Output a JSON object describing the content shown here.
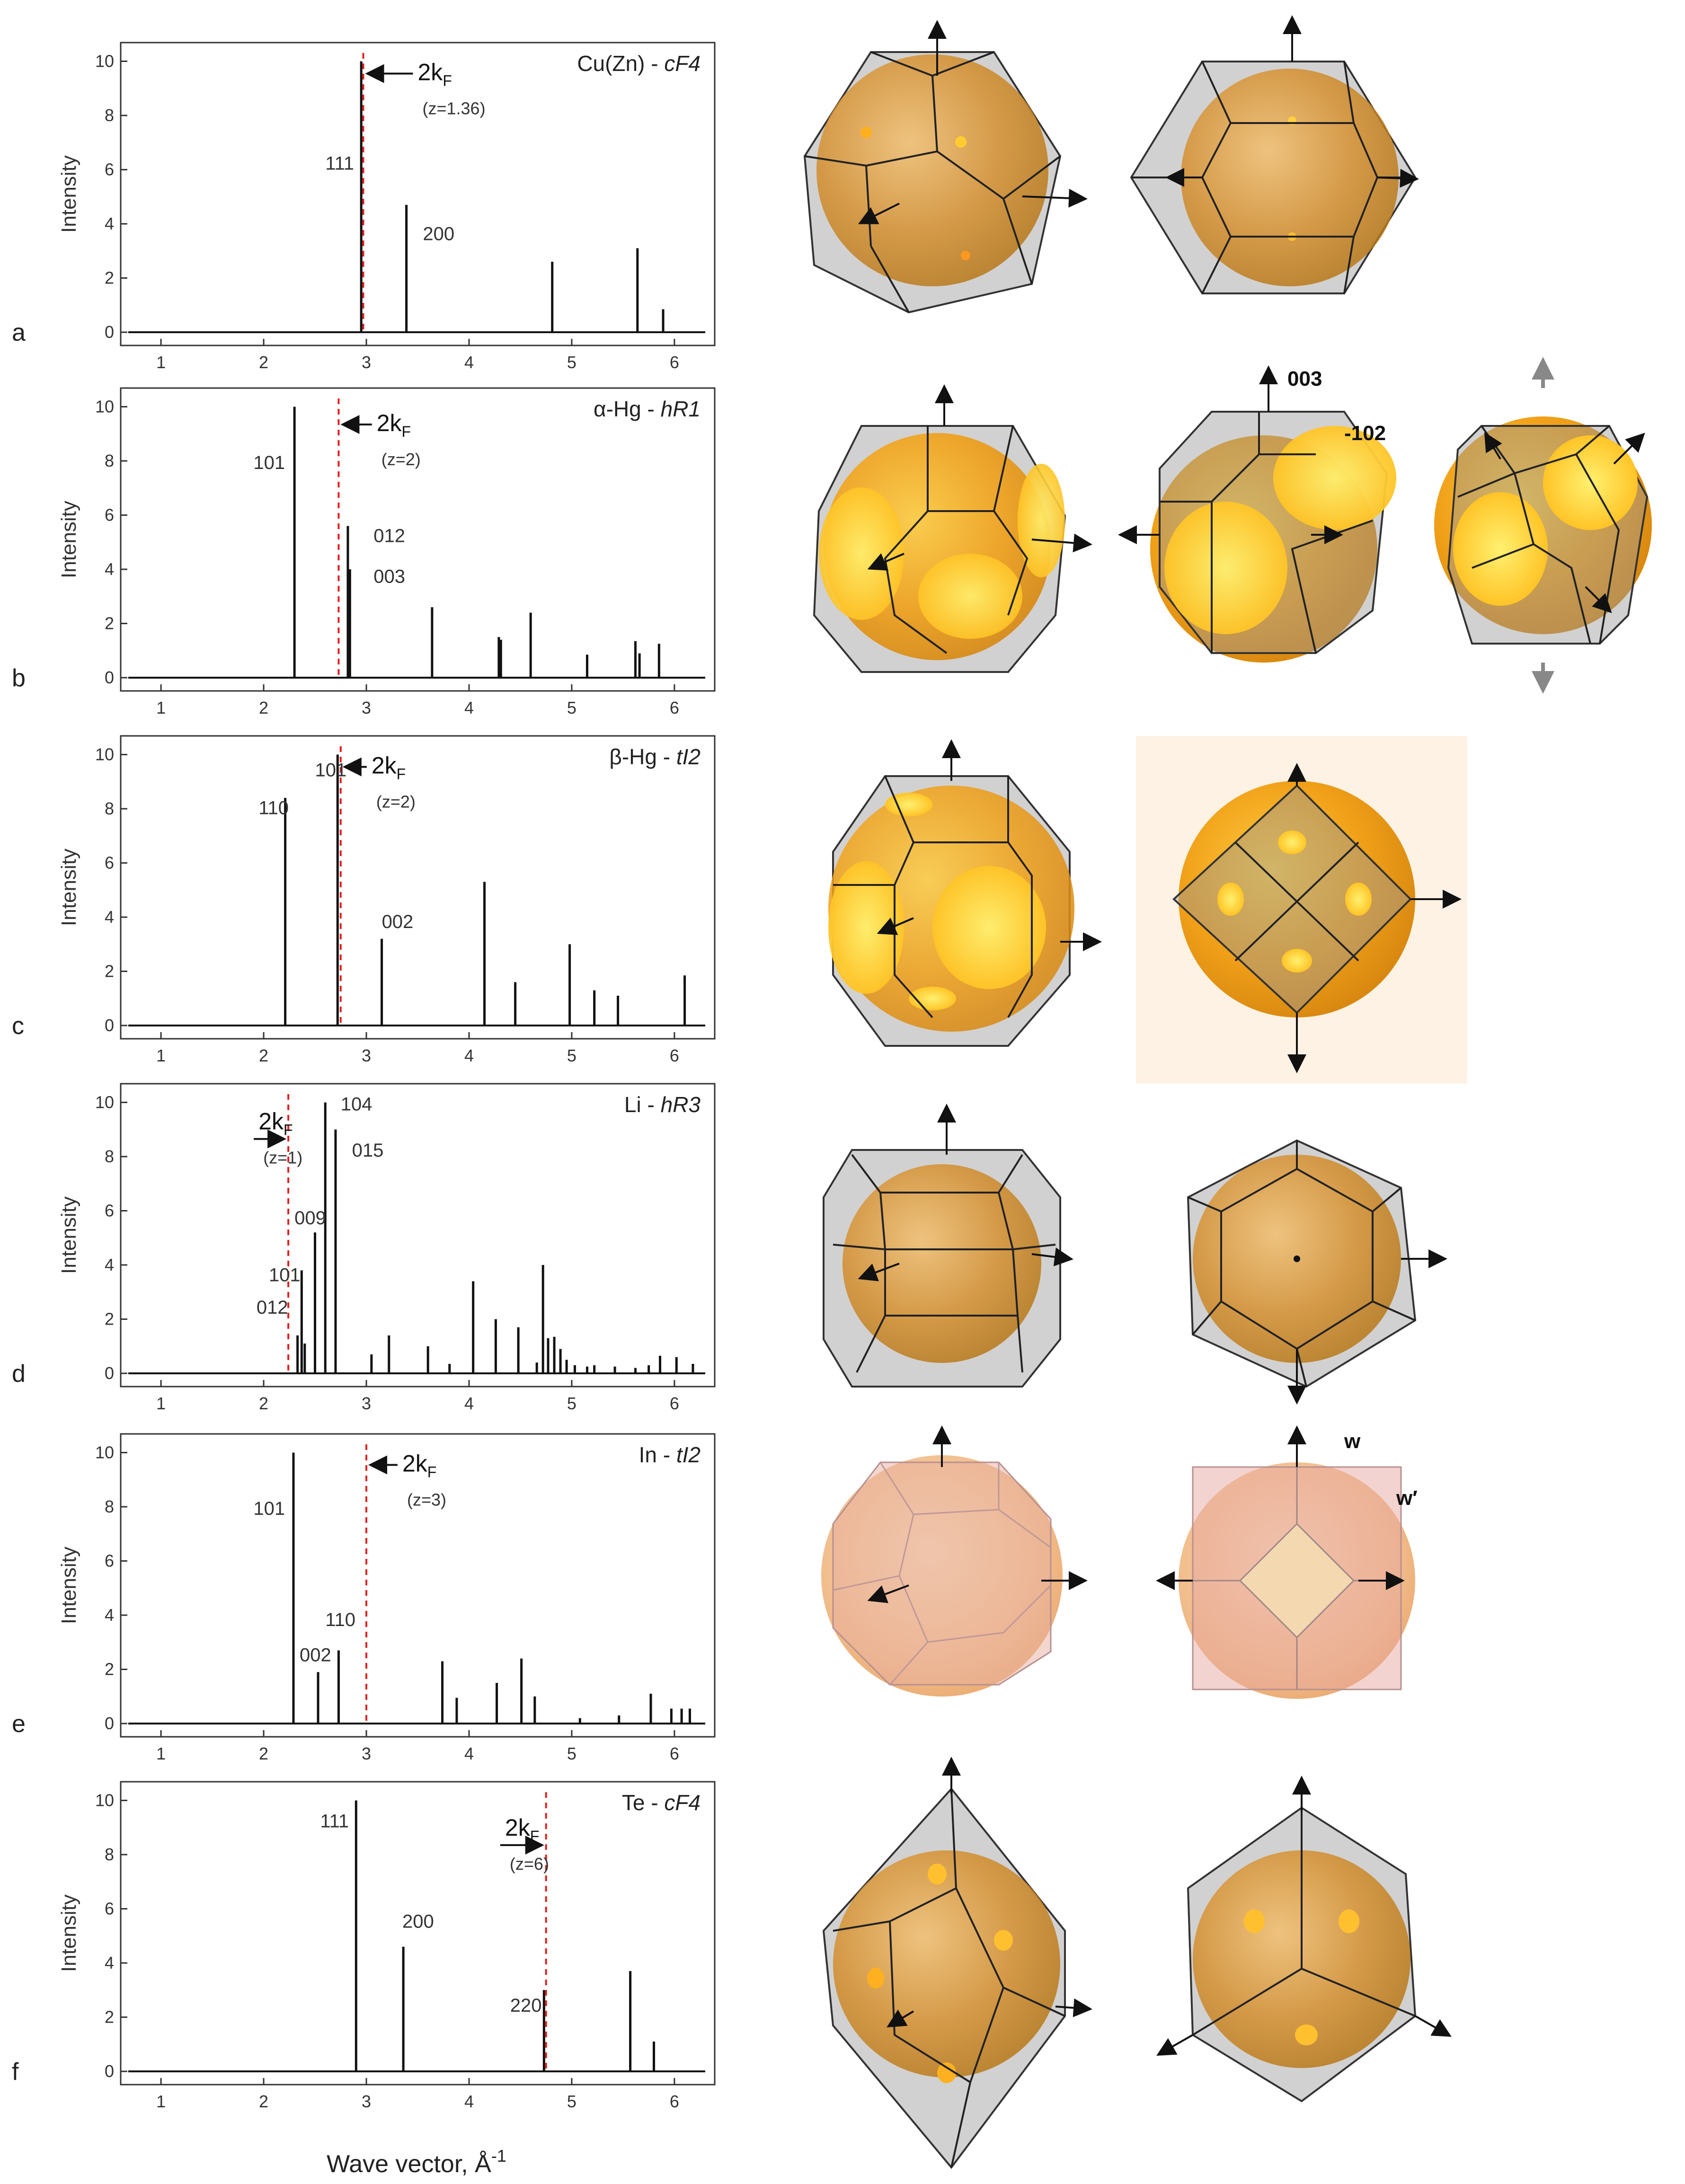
{
  "x_axis_label": "Wave vector, Å",
  "x_axis_exponent": "-1",
  "colors": {
    "kf_line": "#e02020",
    "peak": "#111111",
    "sphere_orange": "#e8a020",
    "sphere_pink": "#e8a2a0"
  },
  "chart_data": [
    {
      "type": "bar",
      "letter": "a",
      "title_plain": "Cu(Zn) - ",
      "title_italic": "cF4",
      "xlim": [
        0.7,
        6.3
      ],
      "ylim": [
        0,
        10.2
      ],
      "x_ticks": [
        "1",
        "2",
        "3",
        "4",
        "5",
        "6"
      ],
      "y_ticks": [
        "0",
        "2",
        "4",
        "6",
        "8",
        "10"
      ],
      "ylabel": "Intensity",
      "peaks": [
        {
          "x": 2.95,
          "y": 10.0
        },
        {
          "x": 3.39,
          "y": 4.7
        },
        {
          "x": 4.81,
          "y": 2.6
        },
        {
          "x": 5.64,
          "y": 3.1
        },
        {
          "x": 5.89,
          "y": 0.85
        }
      ],
      "peak_labels": [
        {
          "text": "111",
          "x": 2.6,
          "y": 6.0
        },
        {
          "text": "200",
          "x": 3.55,
          "y": 3.4
        }
      ],
      "kF": {
        "x": 2.97,
        "main": "2k",
        "sub": "F",
        "z": "(z=1.36)",
        "arrow": "left",
        "lx": 3.5,
        "ly": 9.3
      }
    },
    {
      "type": "bar",
      "letter": "b",
      "title_plain": "α-Hg - ",
      "title_italic": "hR1",
      "xlim": [
        0.7,
        6.3
      ],
      "ylim": [
        0,
        10.2
      ],
      "x_ticks": [
        "1",
        "2",
        "3",
        "4",
        "5",
        "6"
      ],
      "y_ticks": [
        "0",
        "2",
        "4",
        "6",
        "8",
        "10"
      ],
      "ylabel": "Intensity",
      "peaks": [
        {
          "x": 2.3,
          "y": 10.0
        },
        {
          "x": 2.82,
          "y": 5.6
        },
        {
          "x": 2.84,
          "y": 4.0
        },
        {
          "x": 3.64,
          "y": 2.6
        },
        {
          "x": 4.29,
          "y": 1.5
        },
        {
          "x": 4.31,
          "y": 1.4
        },
        {
          "x": 4.6,
          "y": 2.4
        },
        {
          "x": 5.15,
          "y": 0.85
        },
        {
          "x": 5.62,
          "y": 1.35
        },
        {
          "x": 5.66,
          "y": 0.9
        },
        {
          "x": 5.85,
          "y": 1.25
        }
      ],
      "peak_labels": [
        {
          "text": "101",
          "x": 1.9,
          "y": 7.7
        },
        {
          "text": "012",
          "x": 3.07,
          "y": 5.0
        },
        {
          "text": "003",
          "x": 3.07,
          "y": 3.5
        }
      ],
      "kF": {
        "x": 2.73,
        "main": "2k",
        "sub": "F",
        "z": "(z=2)",
        "arrow": "left",
        "lx": 3.1,
        "ly": 9.1
      }
    },
    {
      "type": "bar",
      "letter": "c",
      "title_plain": "β-Hg - ",
      "title_italic": "tI2",
      "xlim": [
        0.7,
        6.3
      ],
      "ylim": [
        0,
        10.2
      ],
      "x_ticks": [
        "1",
        "2",
        "3",
        "4",
        "5",
        "6"
      ],
      "y_ticks": [
        "0",
        "2",
        "4",
        "6",
        "8",
        "10"
      ],
      "ylabel": "Intensity",
      "peaks": [
        {
          "x": 2.21,
          "y": 8.4
        },
        {
          "x": 2.72,
          "y": 10.0
        },
        {
          "x": 3.15,
          "y": 3.2
        },
        {
          "x": 4.15,
          "y": 5.3
        },
        {
          "x": 4.45,
          "y": 1.6
        },
        {
          "x": 4.98,
          "y": 3.0
        },
        {
          "x": 5.22,
          "y": 1.3
        },
        {
          "x": 5.45,
          "y": 1.1
        },
        {
          "x": 6.1,
          "y": 1.85
        }
      ],
      "peak_labels": [
        {
          "text": "110",
          "x": 1.95,
          "y": 7.8
        },
        {
          "text": "101",
          "x": 2.5,
          "y": 9.2
        },
        {
          "text": "002",
          "x": 3.15,
          "y": 3.6
        }
      ],
      "kF": {
        "x": 2.75,
        "main": "2k",
        "sub": "F",
        "z": "(z=2)",
        "arrow": "left",
        "lx": 3.05,
        "ly": 9.3
      }
    },
    {
      "type": "bar",
      "letter": "d",
      "title_plain": "Li - ",
      "title_italic": "hR3",
      "xlim": [
        0.7,
        6.3
      ],
      "ylim": [
        0,
        10.2
      ],
      "x_ticks": [
        "1",
        "2",
        "3",
        "4",
        "5",
        "6"
      ],
      "y_ticks": [
        "0",
        "2",
        "4",
        "6",
        "8",
        "10"
      ],
      "ylabel": "Intensity",
      "peaks": [
        {
          "x": 2.33,
          "y": 1.4
        },
        {
          "x": 2.37,
          "y": 3.8
        },
        {
          "x": 2.4,
          "y": 1.1
        },
        {
          "x": 2.5,
          "y": 5.2
        },
        {
          "x": 2.6,
          "y": 10.0
        },
        {
          "x": 2.7,
          "y": 9.0
        },
        {
          "x": 3.05,
          "y": 0.7
        },
        {
          "x": 3.22,
          "y": 1.4
        },
        {
          "x": 3.6,
          "y": 1.0
        },
        {
          "x": 3.81,
          "y": 0.35
        },
        {
          "x": 4.04,
          "y": 3.4
        },
        {
          "x": 4.26,
          "y": 2.0
        },
        {
          "x": 4.48,
          "y": 1.7
        },
        {
          "x": 4.66,
          "y": 0.4
        },
        {
          "x": 4.72,
          "y": 4.0
        },
        {
          "x": 4.77,
          "y": 1.3
        },
        {
          "x": 4.83,
          "y": 1.35
        },
        {
          "x": 4.89,
          "y": 0.9
        },
        {
          "x": 4.95,
          "y": 0.5
        },
        {
          "x": 5.03,
          "y": 0.3
        },
        {
          "x": 5.15,
          "y": 0.25
        },
        {
          "x": 5.22,
          "y": 0.3
        },
        {
          "x": 5.42,
          "y": 0.25
        },
        {
          "x": 5.62,
          "y": 0.2
        },
        {
          "x": 5.75,
          "y": 0.3
        },
        {
          "x": 5.86,
          "y": 0.65
        },
        {
          "x": 6.02,
          "y": 0.6
        },
        {
          "x": 6.18,
          "y": 0.35
        }
      ],
      "peak_labels": [
        {
          "text": "104",
          "x": 2.75,
          "y": 9.7
        },
        {
          "text": "015",
          "x": 2.86,
          "y": 8.0
        },
        {
          "text": "009",
          "x": 2.3,
          "y": 5.5
        },
        {
          "text": "101",
          "x": 2.05,
          "y": 3.4
        },
        {
          "text": "012",
          "x": 1.93,
          "y": 2.2
        }
      ],
      "kF": {
        "x": 2.24,
        "main": "2k",
        "sub": "F",
        "z": "(z=1)",
        "arrow": "right",
        "lx": 1.95,
        "ly": 9.0
      }
    },
    {
      "type": "bar",
      "letter": "e",
      "title_plain": "In - ",
      "title_italic": "tI2",
      "xlim": [
        0.7,
        6.3
      ],
      "ylim": [
        0,
        10.2
      ],
      "x_ticks": [
        "1",
        "2",
        "3",
        "4",
        "5",
        "6"
      ],
      "y_ticks": [
        "0",
        "2",
        "4",
        "6",
        "8",
        "10"
      ],
      "ylabel": "Intensity",
      "peaks": [
        {
          "x": 2.29,
          "y": 10.0
        },
        {
          "x": 2.53,
          "y": 1.9
        },
        {
          "x": 2.73,
          "y": 2.7
        },
        {
          "x": 3.74,
          "y": 2.3
        },
        {
          "x": 3.88,
          "y": 0.95
        },
        {
          "x": 4.27,
          "y": 1.5
        },
        {
          "x": 4.51,
          "y": 2.4
        },
        {
          "x": 4.64,
          "y": 1.0
        },
        {
          "x": 5.08,
          "y": 0.2
        },
        {
          "x": 5.46,
          "y": 0.3
        },
        {
          "x": 5.77,
          "y": 1.1
        },
        {
          "x": 5.97,
          "y": 0.55
        },
        {
          "x": 6.07,
          "y": 0.55
        },
        {
          "x": 6.15,
          "y": 0.55
        }
      ],
      "peak_labels": [
        {
          "text": "101",
          "x": 1.9,
          "y": 7.7
        },
        {
          "text": "002",
          "x": 2.35,
          "y": 2.3
        },
        {
          "text": "110",
          "x": 2.6,
          "y": 3.6
        }
      ],
      "kF": {
        "x": 3.0,
        "main": "2k",
        "sub": "F",
        "z": "(z=3)",
        "arrow": "left",
        "lx": 3.35,
        "ly": 9.3
      }
    },
    {
      "type": "bar",
      "letter": "f",
      "title_plain": "Te - ",
      "title_italic": "cF4",
      "xlim": [
        0.7,
        6.3
      ],
      "ylim": [
        0,
        10.2
      ],
      "x_ticks": [
        "1",
        "2",
        "3",
        "4",
        "5",
        "6"
      ],
      "y_ticks": [
        "0",
        "2",
        "4",
        "6",
        "8",
        "10"
      ],
      "ylabel": "Intensity",
      "peaks": [
        {
          "x": 2.9,
          "y": 10.0
        },
        {
          "x": 3.36,
          "y": 4.6
        },
        {
          "x": 4.73,
          "y": 3.0
        },
        {
          "x": 5.57,
          "y": 3.7
        },
        {
          "x": 5.8,
          "y": 1.1
        }
      ],
      "peak_labels": [
        {
          "text": "111",
          "x": 2.55,
          "y": 9.0
        },
        {
          "text": "200",
          "x": 3.35,
          "y": 5.3
        },
        {
          "text": "220",
          "x": 4.4,
          "y": 2.2
        }
      ],
      "kF": {
        "x": 4.75,
        "main": "2k",
        "sub": "F",
        "z": "(z=6)",
        "arrow": "right",
        "lx": 4.35,
        "ly": 8.7
      }
    }
  ],
  "zone_annotations": {
    "alpha_hg_003": "003",
    "alpha_hg_102": "-102",
    "indium_w": "w",
    "indium_w_prime": "w′"
  }
}
